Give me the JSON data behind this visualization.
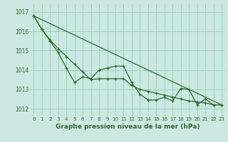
{
  "line1_x": [
    0,
    1,
    2,
    3,
    4,
    5,
    6,
    7,
    8,
    9,
    10,
    11,
    12,
    13,
    14,
    15,
    16,
    17,
    18,
    19,
    20,
    21,
    22,
    23
  ],
  "line1_y": [
    1016.8,
    1016.1,
    1015.5,
    1014.9,
    1014.1,
    1013.35,
    1013.65,
    1013.55,
    1014.0,
    1014.1,
    1014.2,
    1014.2,
    1013.35,
    1012.75,
    1012.45,
    1012.45,
    1012.6,
    1012.4,
    1013.05,
    1013.0,
    1012.2,
    1012.5,
    1012.2,
    1012.2
  ],
  "line2_x": [
    0,
    1,
    2,
    3,
    4,
    5,
    6,
    7,
    8,
    9,
    10,
    11,
    12,
    13,
    14,
    15,
    16,
    17,
    18,
    19,
    20,
    21,
    22,
    23
  ],
  "line2_y": [
    1016.8,
    1016.1,
    1015.55,
    1015.1,
    1014.7,
    1014.3,
    1013.9,
    1013.5,
    1013.55,
    1013.55,
    1013.55,
    1013.55,
    1013.2,
    1013.0,
    1012.9,
    1012.8,
    1012.7,
    1012.6,
    1012.5,
    1012.4,
    1012.35,
    1012.3,
    1012.2,
    1012.2
  ],
  "trend_x": [
    0,
    23
  ],
  "trend_y": [
    1016.8,
    1012.2
  ],
  "bg_color": "#cce8e0",
  "grid_color": "#99ccbb",
  "line_color": "#336633",
  "xlabel": "Graphe pression niveau de la mer (hPa)",
  "ylim": [
    1011.6,
    1017.4
  ],
  "xlim": [
    -0.5,
    23.5
  ],
  "yticks": [
    1012,
    1013,
    1014,
    1015,
    1016,
    1017
  ],
  "xticks": [
    0,
    1,
    2,
    3,
    4,
    5,
    6,
    7,
    8,
    9,
    10,
    11,
    12,
    13,
    14,
    15,
    16,
    17,
    18,
    19,
    20,
    21,
    22,
    23
  ]
}
